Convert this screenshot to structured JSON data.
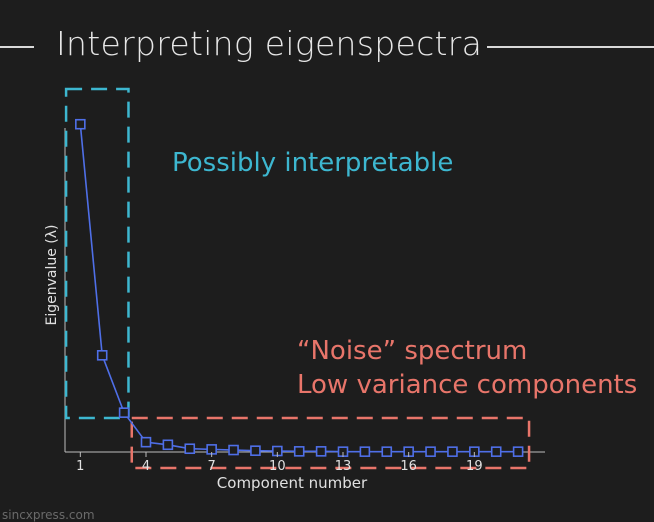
{
  "slide": {
    "title": "Interpreting eigenspectra",
    "watermark": "sincxpress.com"
  },
  "annotations": {
    "interpretable": "Possibly interpretable",
    "noise_line1": "“Noise” spectrum",
    "noise_line2": "Low variance components"
  },
  "colors": {
    "background": "#1d1d1d",
    "series": "#4f6fe8",
    "interpretable_box": "#3db7d0",
    "noise_box": "#e8756a",
    "axis_text": "#e0e0e0"
  },
  "chart_data": {
    "type": "line",
    "title": "",
    "xlabel": "Component number",
    "ylabel": "Eigenvalue (λ)",
    "x": [
      1,
      2,
      3,
      4,
      5,
      6,
      7,
      8,
      9,
      10,
      11,
      12,
      13,
      14,
      15,
      16,
      17,
      18,
      19,
      20,
      21
    ],
    "values": [
      10.0,
      2.95,
      1.2,
      0.3,
      0.22,
      0.1,
      0.08,
      0.06,
      0.04,
      0.03,
      0.02,
      0.02,
      0.01,
      0.01,
      0.01,
      0.01,
      0.01,
      0.01,
      0.01,
      0.01,
      0.01
    ],
    "xticks": [
      1,
      4,
      7,
      10,
      13,
      16,
      19
    ],
    "xlim": [
      0.3,
      22
    ],
    "ylim": [
      0,
      10.8
    ],
    "marker": "square",
    "grid": false,
    "legend": "none"
  }
}
